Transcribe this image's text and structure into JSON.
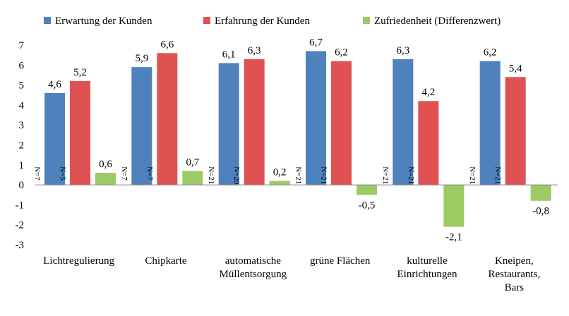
{
  "chart_data": {
    "type": "bar",
    "categories": [
      [
        "Lichtregulierung"
      ],
      [
        "Chipkarte"
      ],
      [
        "automatische",
        "Müllentsorgung"
      ],
      [
        "grüne Flächen"
      ],
      [
        "kulturelle",
        "Einrichtungen"
      ],
      [
        "Kneipen,",
        "Restaurants,",
        "Bars"
      ]
    ],
    "series": [
      {
        "name": "Erwartung der Kunden",
        "color": "#4F81BD",
        "values": [
          4.6,
          5.9,
          6.1,
          6.7,
          6.3,
          6.2
        ],
        "value_labels": [
          "4,6",
          "5,9",
          "6,1",
          "6,7",
          "6,3",
          "6,2"
        ],
        "n_labels": [
          "N=7",
          "N=7",
          "N=21",
          "N=21",
          "N=21",
          "N=21"
        ]
      },
      {
        "name": "Erfahrung der Kunden",
        "color": "#E05252",
        "values": [
          5.2,
          6.6,
          6.3,
          6.2,
          4.2,
          5.4
        ],
        "value_labels": [
          "5,2",
          "6,6",
          "6,3",
          "6,2",
          "4,2",
          "5,4"
        ],
        "n_labels": [
          "N=5",
          "N=7",
          "N=20",
          "N=21",
          "N=21",
          "N=21"
        ]
      },
      {
        "name": "Zufriedenheit (Differenzwert)",
        "color": "#9BCB62",
        "values": [
          0.6,
          0.7,
          0.2,
          -0.5,
          -2.1,
          -0.8
        ],
        "value_labels": [
          "0,6",
          "0,7",
          "0,2",
          "-0,5",
          "-2,1",
          "-0,8"
        ]
      }
    ],
    "ylim": [
      -3,
      7
    ],
    "yticks": [
      -3,
      -2,
      -1,
      0,
      1,
      2,
      3,
      4,
      5,
      6,
      7
    ],
    "legend_position": "top",
    "grid": false
  }
}
